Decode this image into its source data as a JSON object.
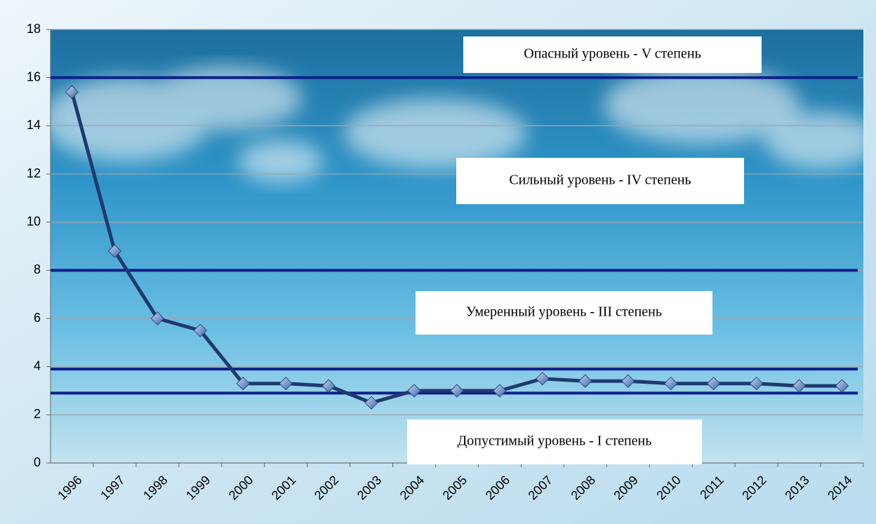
{
  "chart_data": {
    "type": "line",
    "categories": [
      "1996",
      "1997",
      "1998",
      "1999",
      "2000",
      "2001",
      "2002",
      "2003",
      "2004",
      "2005",
      "2006",
      "2007",
      "2008",
      "2009",
      "2010",
      "2011",
      "2012",
      "2013",
      "2014"
    ],
    "series": [
      {
        "color": "#1f3a6e",
        "values": [
          15.4,
          8.8,
          6.0,
          5.5,
          3.3,
          3.3,
          3.2,
          2.5,
          3.0,
          3.0,
          3.0,
          3.5,
          3.4,
          3.4,
          3.3,
          3.3,
          3.3,
          3.2,
          3.2
        ]
      }
    ],
    "ylim": [
      0,
      18
    ],
    "yticks": [
      0,
      2,
      4,
      6,
      8,
      10,
      12,
      14,
      16,
      18
    ],
    "grid": true,
    "reference_lines": {
      "color": "#0b1f8a",
      "values": [
        16,
        8,
        3.9,
        2.9
      ]
    },
    "annotations": [
      "Опасный уровень  -  V степень",
      "Сильный уровень  -  IV степень",
      "Умеренный уровень  -  III степень",
      "Допустимый уровень -  I степень"
    ]
  }
}
